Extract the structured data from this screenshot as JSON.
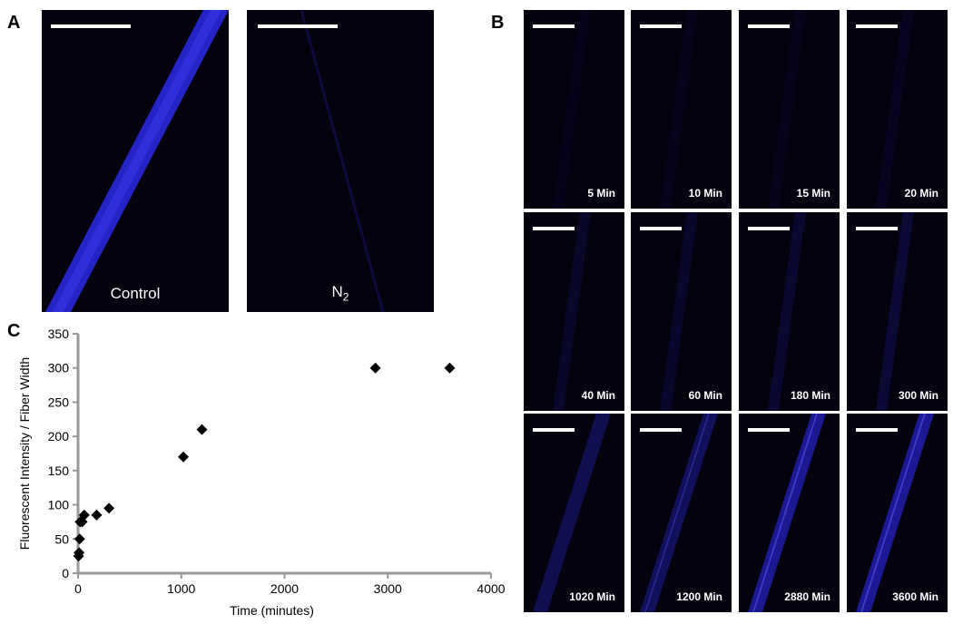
{
  "panel_labels": {
    "a": "A",
    "b": "B",
    "c": "C"
  },
  "panel_a": {
    "images": [
      {
        "caption": "Control",
        "fiber": "bright"
      },
      {
        "caption": "N",
        "caption_sub": "2",
        "fiber": "faint"
      }
    ]
  },
  "panel_b": {
    "images": [
      {
        "caption": "5 Min",
        "fiber": 0.06
      },
      {
        "caption": "10 Min",
        "fiber": 0.07
      },
      {
        "caption": "15 Min",
        "fiber": 0.07
      },
      {
        "caption": "20 Min",
        "fiber": 0.08
      },
      {
        "caption": "40 Min",
        "fiber": 0.14
      },
      {
        "caption": "60 Min",
        "fiber": 0.15
      },
      {
        "caption": "180 Min",
        "fiber": 0.16
      },
      {
        "caption": "300 Min",
        "fiber": 0.18
      },
      {
        "caption": "1020 Min",
        "fiber": 0.3
      },
      {
        "caption": "1200 Min",
        "fiber": 0.36
      },
      {
        "caption": "2880 Min",
        "fiber": 0.6
      },
      {
        "caption": "3600 Min",
        "fiber": 0.62
      }
    ]
  },
  "colors": {
    "image_background": "#04020f",
    "fiber": "#2a2ae6",
    "scale_bar": "#ffffff",
    "axis": "#999999",
    "marker": "#000000"
  },
  "chart_data": {
    "type": "scatter",
    "xlabel": "Time (minutes)",
    "ylabel": "Fluorescent Intensity / Fiber Width",
    "xlim": [
      0,
      4000
    ],
    "ylim": [
      0,
      350
    ],
    "xticks": [
      "0",
      "1000",
      "2000",
      "3000",
      "4000"
    ],
    "yticks": [
      "0",
      "50",
      "100",
      "150",
      "200",
      "250",
      "300",
      "350"
    ],
    "marker": "diamond",
    "grid": false,
    "points": [
      {
        "x": 5,
        "y": 25
      },
      {
        "x": 10,
        "y": 30
      },
      {
        "x": 15,
        "y": 50
      },
      {
        "x": 20,
        "y": 75
      },
      {
        "x": 40,
        "y": 75
      },
      {
        "x": 60,
        "y": 85
      },
      {
        "x": 180,
        "y": 85
      },
      {
        "x": 300,
        "y": 95
      },
      {
        "x": 1020,
        "y": 170
      },
      {
        "x": 1200,
        "y": 210
      },
      {
        "x": 2880,
        "y": 300
      },
      {
        "x": 3600,
        "y": 300
      }
    ]
  }
}
